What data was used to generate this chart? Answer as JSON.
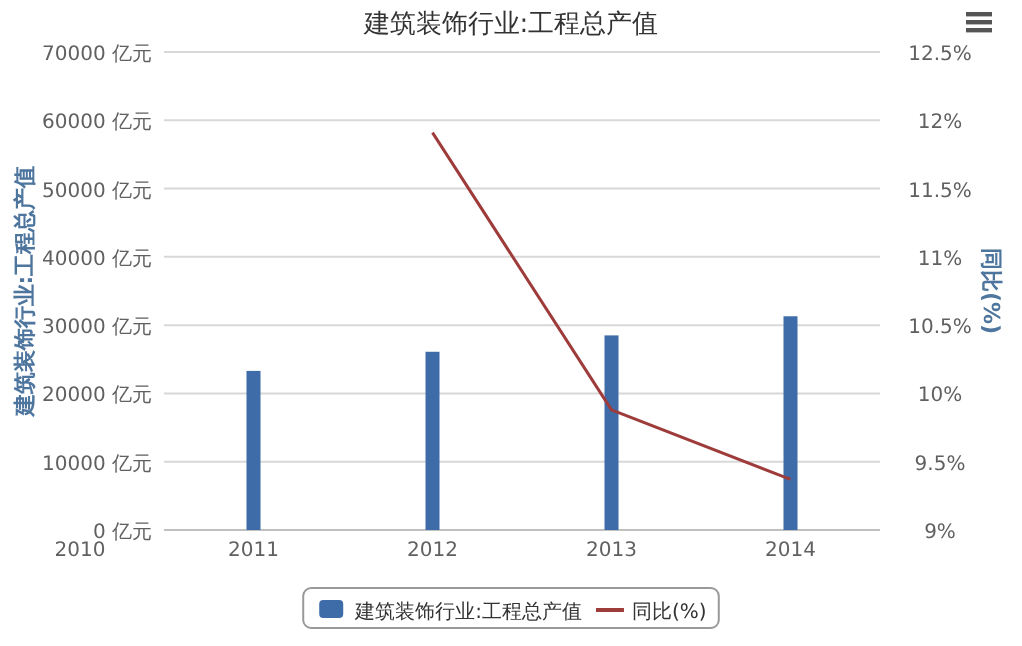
{
  "chart_data": {
    "type": "bar",
    "title": "建筑装饰行业:工程总产值",
    "ylabel": "建筑装饰行业:工程总产值",
    "y2label": "同比(%)",
    "categories": [
      "2011",
      "2012",
      "2013",
      "2014"
    ],
    "series": [
      {
        "name": "建筑装饰行业:工程总产值",
        "color": "#3d6ca8",
        "values": [
          23300,
          26100,
          28500,
          31300
        ]
      },
      {
        "name": "同比(%)",
        "type": "line",
        "axis": "y2",
        "color": "#9e3b3b",
        "values": [
          null,
          11.91,
          9.88,
          9.37
        ]
      }
    ],
    "ylim": [
      0,
      70000
    ],
    "yticks": [
      {
        "value": 0,
        "label": "0 亿元"
      },
      {
        "value": 10000,
        "label": "10000 亿元"
      },
      {
        "value": 20000,
        "label": "20000 亿元"
      },
      {
        "value": 30000,
        "label": "30000 亿元"
      },
      {
        "value": 40000,
        "label": "40000 亿元"
      },
      {
        "value": 50000,
        "label": "50000 亿元"
      },
      {
        "value": 60000,
        "label": "60000 亿元"
      },
      {
        "value": 70000,
        "label": "70000 亿元"
      }
    ],
    "y2lim": [
      9,
      12.5
    ],
    "y2ticks": [
      {
        "value": 9,
        "label": "9%"
      },
      {
        "value": 9.5,
        "label": "9.5%"
      },
      {
        "value": 10,
        "label": "10%"
      },
      {
        "value": 10.5,
        "label": "10.5%"
      },
      {
        "value": 11,
        "label": "11%"
      },
      {
        "value": 11.5,
        "label": "11.5%"
      },
      {
        "value": 12,
        "label": "12%"
      },
      {
        "value": 12.5,
        "label": "12.5%"
      }
    ],
    "annotations": [
      "2010"
    ],
    "grid": "y",
    "legend": "bottom",
    "marker": "none"
  }
}
